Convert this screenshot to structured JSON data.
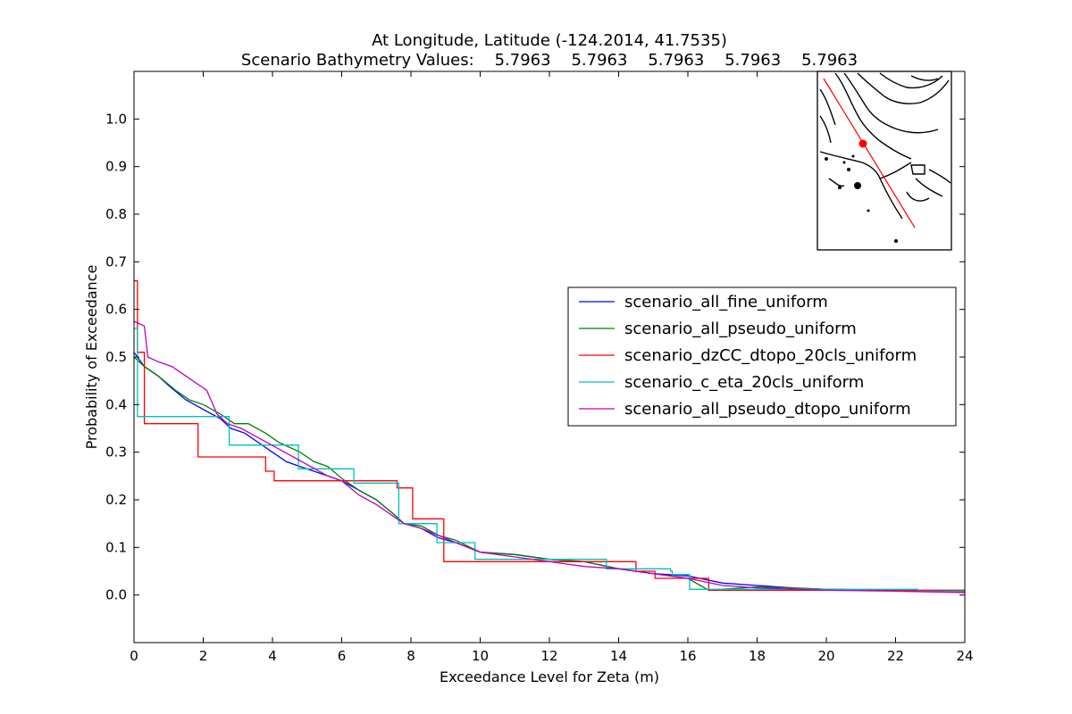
{
  "chart_data": {
    "type": "line",
    "title": "At Longitude, Latitude (-124.2014,  41.7535)",
    "subtitle": "Scenario Bathymetry Values:    5.7963    5.7963    5.7963    5.7963    5.7963",
    "xlabel": "Exceedance Level for Zeta (m)",
    "ylabel": "Probability of Exceedance",
    "xlim": [
      0,
      24
    ],
    "ylim": [
      -0.1,
      1.1
    ],
    "x_ticks": [
      "0",
      "2",
      "4",
      "6",
      "8",
      "10",
      "12",
      "14",
      "16",
      "18",
      "20",
      "22",
      "24"
    ],
    "y_ticks": [
      "0.0",
      "0.1",
      "0.2",
      "0.3",
      "0.4",
      "0.5",
      "0.6",
      "0.7",
      "0.8",
      "0.9",
      "1.0"
    ],
    "grid": false,
    "legend_position": "right",
    "series": [
      {
        "name": "scenario_all_fine_uniform",
        "color": "#0000ff",
        "step": false,
        "points": [
          [
            0,
            0.51
          ],
          [
            0.3,
            0.48
          ],
          [
            0.7,
            0.46
          ],
          [
            1.0,
            0.44
          ],
          [
            1.5,
            0.41
          ],
          [
            2.0,
            0.39
          ],
          [
            2.5,
            0.37
          ],
          [
            2.8,
            0.35
          ],
          [
            3.2,
            0.34
          ],
          [
            3.6,
            0.32
          ],
          [
            4.0,
            0.3
          ],
          [
            4.4,
            0.28
          ],
          [
            4.8,
            0.27
          ],
          [
            5.2,
            0.26
          ],
          [
            5.6,
            0.25
          ],
          [
            6.0,
            0.24
          ],
          [
            6.5,
            0.22
          ],
          [
            7.0,
            0.2
          ],
          [
            7.5,
            0.17
          ],
          [
            7.8,
            0.15
          ],
          [
            8.3,
            0.14
          ],
          [
            8.8,
            0.12
          ],
          [
            9.3,
            0.11
          ],
          [
            10,
            0.09
          ],
          [
            11,
            0.085
          ],
          [
            12,
            0.075
          ],
          [
            13,
            0.07
          ],
          [
            14,
            0.055
          ],
          [
            15,
            0.045
          ],
          [
            16,
            0.04
          ],
          [
            17,
            0.025
          ],
          [
            18,
            0.02
          ],
          [
            19,
            0.015
          ],
          [
            20,
            0.012
          ],
          [
            22,
            0.01
          ],
          [
            24,
            0.007
          ]
        ]
      },
      {
        "name": "scenario_all_pseudo_uniform",
        "color": "#008000",
        "step": false,
        "points": [
          [
            0,
            0.5
          ],
          [
            0.3,
            0.48
          ],
          [
            0.7,
            0.46
          ],
          [
            1.2,
            0.43
          ],
          [
            1.6,
            0.41
          ],
          [
            2.0,
            0.4
          ],
          [
            2.5,
            0.38
          ],
          [
            2.9,
            0.36
          ],
          [
            3.3,
            0.36
          ],
          [
            3.8,
            0.34
          ],
          [
            4.2,
            0.32
          ],
          [
            4.8,
            0.3
          ],
          [
            5.2,
            0.28
          ],
          [
            5.6,
            0.27
          ],
          [
            6.0,
            0.245
          ],
          [
            6.5,
            0.22
          ],
          [
            7.0,
            0.2
          ],
          [
            7.5,
            0.17
          ],
          [
            7.8,
            0.15
          ],
          [
            8.3,
            0.145
          ],
          [
            8.8,
            0.125
          ],
          [
            9.3,
            0.115
          ],
          [
            10,
            0.09
          ],
          [
            11,
            0.085
          ],
          [
            12,
            0.075
          ],
          [
            13,
            0.07
          ],
          [
            14,
            0.055
          ],
          [
            15,
            0.045
          ],
          [
            16,
            0.035
          ],
          [
            16.6,
            0.01
          ],
          [
            18,
            0.017
          ],
          [
            20,
            0.012
          ],
          [
            22,
            0.01
          ],
          [
            24,
            0.007
          ]
        ]
      },
      {
        "name": "scenario_dzCC_dtopo_20cls_uniform",
        "color": "#ff0000",
        "step": true,
        "points": [
          [
            0,
            0.66
          ],
          [
            0.1,
            0.51
          ],
          [
            0.3,
            0.47
          ],
          [
            0.3,
            0.36
          ],
          [
            1.85,
            0.36
          ],
          [
            1.85,
            0.29
          ],
          [
            3.8,
            0.29
          ],
          [
            3.8,
            0.26
          ],
          [
            4.05,
            0.26
          ],
          [
            4.05,
            0.24
          ],
          [
            6.8,
            0.24
          ],
          [
            7.6,
            0.225
          ],
          [
            8.05,
            0.16
          ],
          [
            8.95,
            0.07
          ],
          [
            14.1,
            0.07
          ],
          [
            14.5,
            0.05
          ],
          [
            15.05,
            0.035
          ],
          [
            16.6,
            0.01
          ],
          [
            24,
            0.005
          ]
        ]
      },
      {
        "name": "scenario_c_eta_20cls_uniform",
        "color": "#00bfbf",
        "step": true,
        "points": [
          [
            0,
            0.56
          ],
          [
            0.1,
            0.375
          ],
          [
            2.7,
            0.375
          ],
          [
            2.75,
            0.315
          ],
          [
            4.7,
            0.315
          ],
          [
            4.75,
            0.265
          ],
          [
            6.3,
            0.265
          ],
          [
            6.35,
            0.235
          ],
          [
            7.6,
            0.235
          ],
          [
            7.65,
            0.15
          ],
          [
            8.7,
            0.15
          ],
          [
            8.75,
            0.11
          ],
          [
            9.8,
            0.11
          ],
          [
            9.85,
            0.075
          ],
          [
            13.6,
            0.075
          ],
          [
            13.65,
            0.055
          ],
          [
            15.5,
            0.05
          ],
          [
            15.55,
            0.043
          ],
          [
            16.0,
            0.043
          ],
          [
            16.05,
            0.012
          ],
          [
            22.6,
            0.012
          ],
          [
            22.65,
            0.008
          ],
          [
            24,
            0.008
          ]
        ]
      },
      {
        "name": "scenario_all_pseudo_dtopo_uniform",
        "color": "#bf00bf",
        "step": false,
        "points": [
          [
            0,
            0.575
          ],
          [
            0.3,
            0.565
          ],
          [
            0.4,
            0.5
          ],
          [
            0.7,
            0.49
          ],
          [
            1.1,
            0.48
          ],
          [
            1.5,
            0.46
          ],
          [
            1.9,
            0.44
          ],
          [
            2.1,
            0.43
          ],
          [
            2.4,
            0.38
          ],
          [
            2.7,
            0.36
          ],
          [
            3.1,
            0.35
          ],
          [
            3.6,
            0.33
          ],
          [
            4.1,
            0.31
          ],
          [
            4.6,
            0.29
          ],
          [
            5.1,
            0.27
          ],
          [
            5.6,
            0.25
          ],
          [
            6.0,
            0.24
          ],
          [
            6.5,
            0.21
          ],
          [
            7.0,
            0.19
          ],
          [
            7.5,
            0.165
          ],
          [
            7.8,
            0.15
          ],
          [
            8.3,
            0.14
          ],
          [
            8.8,
            0.125
          ],
          [
            9.3,
            0.11
          ],
          [
            10,
            0.09
          ],
          [
            11,
            0.08
          ],
          [
            12,
            0.07
          ],
          [
            13,
            0.06
          ],
          [
            14,
            0.055
          ],
          [
            15,
            0.045
          ],
          [
            16,
            0.035
          ],
          [
            17,
            0.02
          ],
          [
            18,
            0.015
          ],
          [
            19,
            0.012
          ],
          [
            20,
            0.01
          ],
          [
            22,
            0.008
          ],
          [
            24,
            0.005
          ]
        ]
      }
    ],
    "inset_map": {
      "marker_color": "#ff0000",
      "track_color": "#ff0000"
    }
  }
}
